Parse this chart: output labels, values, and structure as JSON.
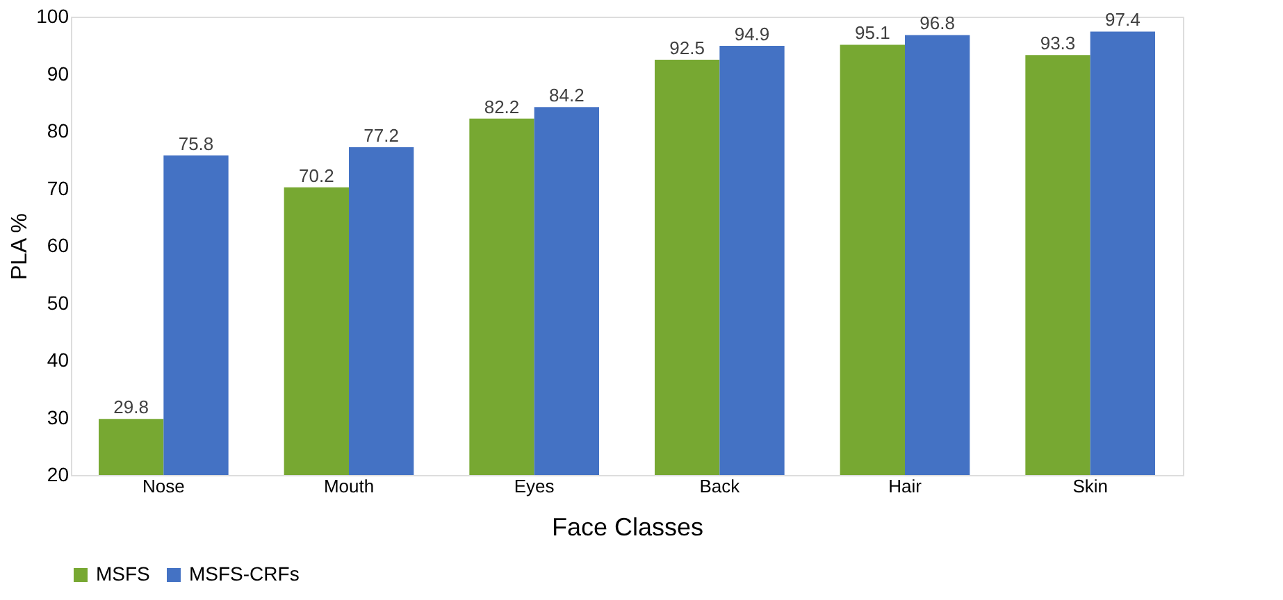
{
  "chart_data": {
    "type": "bar",
    "xlabel": "Face Classes",
    "ylabel": "PLA %",
    "categories": [
      "Nose",
      "Mouth",
      "Eyes",
      "Back",
      "Hair",
      "Skin"
    ],
    "series": [
      {
        "name": "MSFS",
        "color": "#77a832",
        "values": [
          29.8,
          70.2,
          82.2,
          92.5,
          95.1,
          93.3
        ]
      },
      {
        "name": "MSFS-CRFs",
        "color": "#4472c4",
        "values": [
          75.8,
          77.2,
          84.2,
          94.9,
          96.8,
          97.4
        ]
      }
    ],
    "ylim": [
      20,
      100
    ],
    "yticks": [
      20,
      30,
      40,
      50,
      60,
      70,
      80,
      90,
      100
    ],
    "grid": false,
    "legend": "bottom",
    "data_labels": true
  }
}
